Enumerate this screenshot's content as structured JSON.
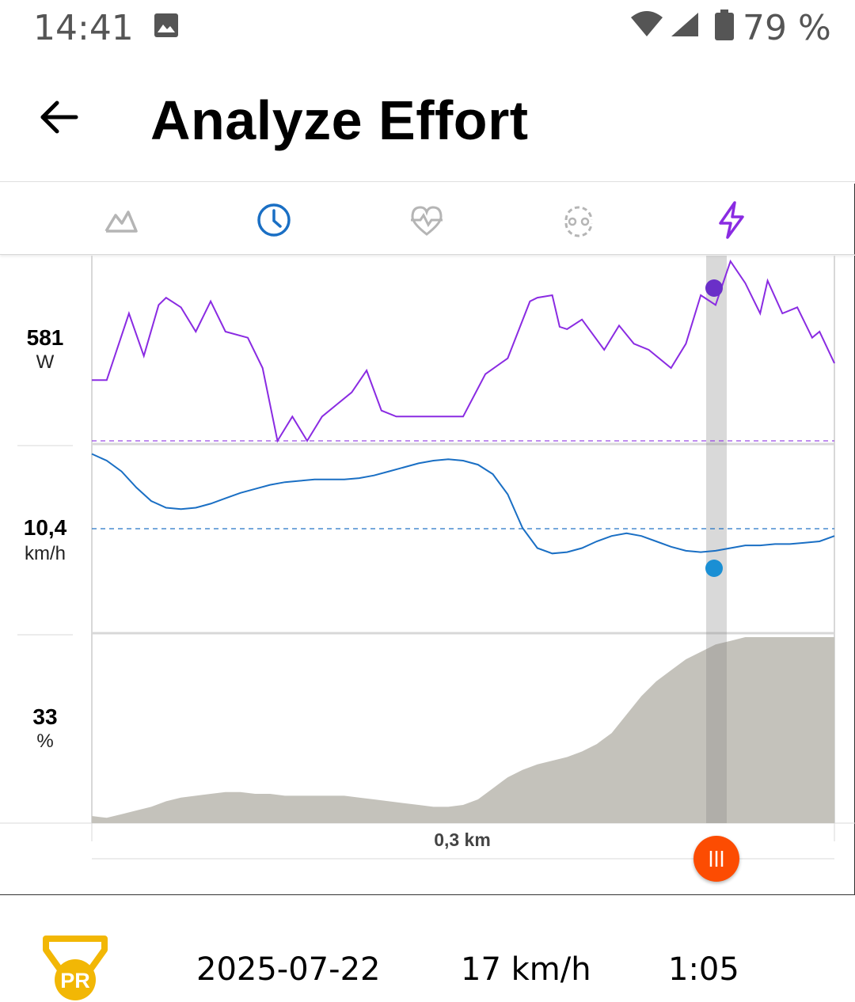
{
  "status_bar": {
    "time": "14:41",
    "battery": "79 %",
    "icons": [
      "image-icon",
      "wifi-icon",
      "signal-icon",
      "battery-icon"
    ]
  },
  "header": {
    "title": "Analyze Effort",
    "back_icon": "arrow-left-icon"
  },
  "tabs": [
    {
      "icon": "elevation-icon",
      "active": false
    },
    {
      "icon": "clock-icon",
      "active": true
    },
    {
      "icon": "heart-rate-icon",
      "active": false
    },
    {
      "icon": "cadence-icon",
      "active": false
    },
    {
      "icon": "power-icon",
      "active": true
    }
  ],
  "metrics": {
    "power": {
      "value": "581",
      "unit": "W",
      "color": "#8a2be2"
    },
    "speed": {
      "value": "10,4",
      "unit": "km/h",
      "color": "#1a6fc4"
    },
    "grade": {
      "value": "33",
      "unit": "%",
      "color": "#c4c2bb"
    }
  },
  "scrubber": {
    "distance_label": "0,3 km",
    "handle_color": "#fc4c02"
  },
  "effort": {
    "badge_label": "PR",
    "badge_color": "#f2b705",
    "date": "2025-07-22",
    "speed": "17 km/h",
    "time": "1:05"
  },
  "chart_data": [
    {
      "type": "line",
      "ylabel": "W",
      "marker_value": "581",
      "x": [
        0.0,
        0.02,
        0.05,
        0.07,
        0.09,
        0.1,
        0.12,
        0.14,
        0.16,
        0.18,
        0.21,
        0.23,
        0.25,
        0.27,
        0.29,
        0.31,
        0.33,
        0.35,
        0.37,
        0.39,
        0.41,
        0.44,
        0.46,
        0.48,
        0.5,
        0.53,
        0.56,
        0.59,
        0.6,
        0.62,
        0.63,
        0.64,
        0.66,
        0.69,
        0.71,
        0.73,
        0.75,
        0.78,
        0.8,
        0.82,
        0.84,
        0.86,
        0.88,
        0.9,
        0.91,
        0.93,
        0.95,
        0.97,
        0.98,
        1.0
      ],
      "values": [
        0,
        0,
        55,
        20,
        62,
        68,
        60,
        40,
        65,
        40,
        35,
        10,
        -50,
        -30,
        -50,
        -30,
        -20,
        -10,
        8,
        -25,
        -30,
        -30,
        -30,
        -30,
        -30,
        5,
        18,
        65,
        68,
        70,
        44,
        42,
        50,
        25,
        45,
        30,
        25,
        10,
        30,
        70,
        62,
        98,
        80,
        55,
        82,
        55,
        60,
        35,
        40,
        14
      ]
    },
    {
      "type": "line",
      "ylabel": "km/h",
      "marker_value": "10,4",
      "x": [
        0.0,
        0.02,
        0.04,
        0.06,
        0.08,
        0.1,
        0.12,
        0.14,
        0.16,
        0.18,
        0.2,
        0.22,
        0.24,
        0.26,
        0.28,
        0.3,
        0.32,
        0.34,
        0.36,
        0.38,
        0.4,
        0.42,
        0.44,
        0.46,
        0.48,
        0.5,
        0.52,
        0.54,
        0.56,
        0.58,
        0.6,
        0.62,
        0.64,
        0.66,
        0.68,
        0.7,
        0.72,
        0.74,
        0.76,
        0.78,
        0.8,
        0.82,
        0.84,
        0.86,
        0.88,
        0.9,
        0.92,
        0.94,
        0.96,
        0.98,
        1.0
      ],
      "values": [
        95,
        90,
        82,
        70,
        60,
        55,
        54,
        55,
        58,
        62,
        66,
        69,
        72,
        74,
        75,
        76,
        76,
        76,
        77,
        79,
        82,
        85,
        88,
        90,
        91,
        90,
        87,
        80,
        65,
        40,
        25,
        21,
        22,
        25,
        30,
        34,
        36,
        34,
        30,
        26,
        23,
        22,
        23,
        25,
        27,
        27,
        28,
        28,
        29,
        30,
        34
      ]
    },
    {
      "type": "area",
      "ylabel": "%",
      "marker_value": "33",
      "x": [
        0.0,
        0.02,
        0.04,
        0.06,
        0.08,
        0.1,
        0.12,
        0.14,
        0.16,
        0.18,
        0.2,
        0.22,
        0.24,
        0.26,
        0.28,
        0.3,
        0.32,
        0.34,
        0.36,
        0.38,
        0.4,
        0.42,
        0.44,
        0.46,
        0.48,
        0.5,
        0.52,
        0.54,
        0.56,
        0.58,
        0.6,
        0.62,
        0.64,
        0.66,
        0.68,
        0.7,
        0.72,
        0.74,
        0.76,
        0.78,
        0.8,
        0.82,
        0.84,
        0.86,
        0.88,
        0.9,
        0.92,
        0.94,
        0.96,
        0.98,
        1.0
      ],
      "values": [
        3,
        2,
        4,
        6,
        8,
        11,
        13,
        14,
        15,
        16,
        16,
        15,
        15,
        14,
        14,
        14,
        14,
        14,
        13,
        12,
        11,
        10,
        9,
        8,
        8,
        9,
        12,
        18,
        24,
        28,
        31,
        33,
        35,
        38,
        42,
        48,
        58,
        68,
        76,
        82,
        88,
        92,
        96,
        98,
        100,
        100,
        100,
        100,
        100,
        100,
        100
      ]
    }
  ]
}
